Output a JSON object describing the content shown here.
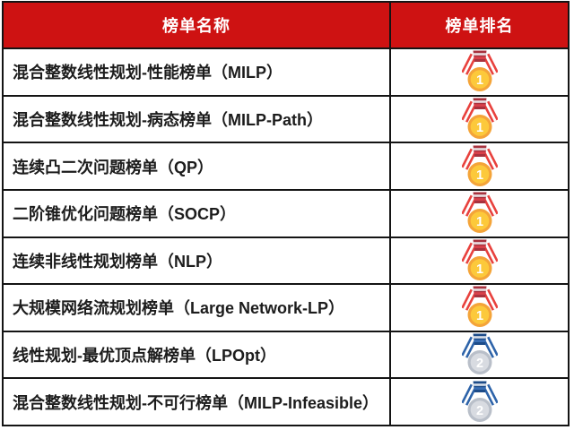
{
  "table": {
    "header": {
      "name_column": "榜单名称",
      "rank_column": "榜单排名"
    },
    "rows": [
      {
        "name": "混合整数线性规划-性能榜单（MILP）",
        "medal": "gold",
        "rank": "1"
      },
      {
        "name": "混合整数线性规划-病态榜单（MILP-Path）",
        "medal": "gold",
        "rank": "1"
      },
      {
        "name": "连续凸二次问题榜单（QP）",
        "medal": "gold",
        "rank": "1"
      },
      {
        "name": "二阶锥优化问题榜单（SOCP）",
        "medal": "gold",
        "rank": "1"
      },
      {
        "name": "连续非线性规划榜单（NLP）",
        "medal": "gold",
        "rank": "1"
      },
      {
        "name": "大规模网络流规划榜单（Large Network-LP）",
        "medal": "gold",
        "rank": "1"
      },
      {
        "name": "线性规划-最优顶点解榜单（LPOpt）",
        "medal": "silver",
        "rank": "2"
      },
      {
        "name": "混合整数线性规划-不可行榜单（MILP-Infeasible）",
        "medal": "silver",
        "rank": "2"
      }
    ]
  },
  "colors": {
    "header_bg": "#CE1212",
    "header_text": "#FFFFFF",
    "border": "#141414",
    "row_text": "#1C1C1C",
    "row_bg": "#FFFFFF"
  },
  "medals": {
    "gold": {
      "rank": "1",
      "icon": "gold-medal-icon",
      "ribbon": "#E8413D",
      "ribbon_stripe": "#FFFFFF",
      "knot": "#A8323E",
      "knot_stripe_light": "#E9DFE2",
      "knot_stripe_red": "#D8414B",
      "circle_outer": "#F4A439",
      "circle_inner": "#FCC93B",
      "number_color": "#FFFFFF"
    },
    "silver": {
      "rank": "2",
      "icon": "silver-medal-icon",
      "ribbon": "#2D63A9",
      "ribbon_stripe": "#FFFFFF",
      "knot": "#1D4C89",
      "knot_stripe_light": "#D7DEE9",
      "knot_stripe_red": "#3A6FB5",
      "circle_outer": "#B9BFC9",
      "circle_inner": "#D8DBE1",
      "number_color": "#FFFFFF"
    }
  }
}
